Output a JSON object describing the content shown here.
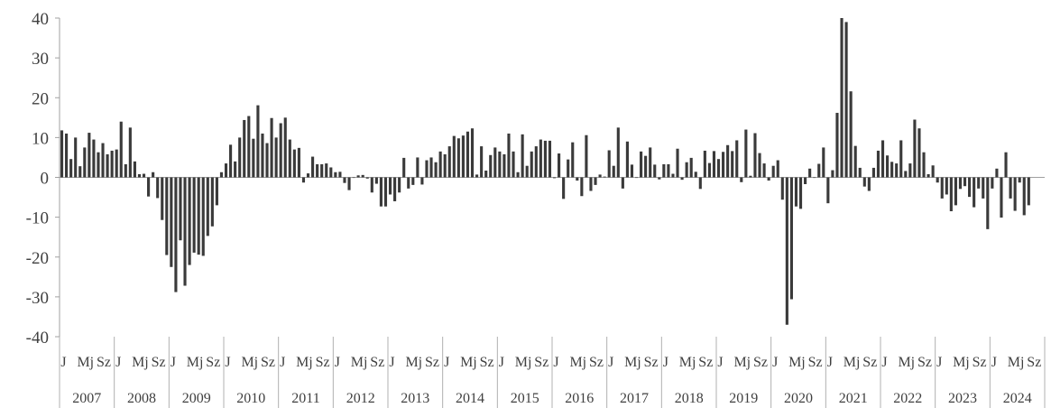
{
  "chart_data": {
    "type": "bar",
    "title": "",
    "xlabel": "",
    "ylabel": "",
    "ylim": [
      -40,
      40
    ],
    "yticks": [
      -40,
      -30,
      -20,
      -10,
      0,
      10,
      20,
      30,
      40
    ],
    "start_year": 2007,
    "month_labels": [
      "J",
      "Mj",
      "Sz"
    ],
    "years": [
      "2007",
      "2008",
      "2009",
      "2010",
      "2011",
      "2012",
      "2013",
      "2014",
      "2015",
      "2016",
      "2017",
      "2018",
      "2019",
      "2020",
      "2021",
      "2022",
      "2023",
      "2024"
    ],
    "months_per_year": [
      12,
      12,
      12,
      12,
      12,
      12,
      12,
      12,
      12,
      12,
      12,
      12,
      12,
      12,
      12,
      12,
      12,
      9
    ],
    "bar_color": "#3a3a3a",
    "values": [
      11.8,
      11.0,
      4.6,
      10.0,
      2.8,
      7.5,
      11.2,
      9.5,
      6.3,
      8.6,
      5.8,
      6.7,
      7.0,
      14.0,
      3.3,
      12.5,
      4.0,
      0.8,
      0.9,
      -4.8,
      1.3,
      -5.2,
      -10.7,
      -19.5,
      -22.5,
      -28.8,
      -15.8,
      -27.2,
      -22.0,
      -18.9,
      -19.4,
      -19.7,
      -14.7,
      -12.3,
      -7.0,
      1.3,
      3.5,
      8.2,
      4.0,
      10.0,
      14.4,
      15.4,
      9.7,
      18.1,
      11.0,
      8.6,
      14.9,
      10.0,
      13.6,
      15.0,
      9.5,
      7.0,
      7.4,
      -1.3,
      1.0,
      5.2,
      3.3,
      3.3,
      3.5,
      2.5,
      1.3,
      1.4,
      -1.4,
      -3.2,
      0.0,
      0.5,
      0.6,
      -0.3,
      -3.8,
      -1.6,
      -7.3,
      -7.3,
      -4.3,
      -6.0,
      -3.8,
      4.9,
      -2.8,
      -1.9,
      5.0,
      -1.8,
      4.3,
      5.0,
      3.8,
      6.5,
      5.8,
      7.8,
      10.4,
      9.8,
      10.5,
      11.5,
      12.3,
      0.7,
      7.8,
      1.7,
      5.6,
      7.5,
      6.5,
      5.8,
      11.0,
      6.5,
      1.3,
      10.8,
      2.9,
      6.5,
      7.8,
      9.5,
      9.2,
      9.2,
      -0.2,
      6.0,
      -5.4,
      4.5,
      8.8,
      -0.8,
      -4.7,
      10.6,
      -3.4,
      -1.9,
      0.7,
      0.2,
      6.8,
      2.9,
      12.5,
      -2.8,
      9.0,
      3.2,
      -0.1,
      6.5,
      5.4,
      7.5,
      3.2,
      -0.5,
      3.3,
      3.3,
      0.9,
      7.2,
      -0.6,
      3.8,
      4.9,
      1.4,
      -2.9,
      6.7,
      3.6,
      6.6,
      4.6,
      6.4,
      8.1,
      6.6,
      9.3,
      -1.2,
      12.0,
      0.4,
      11.1,
      6.1,
      3.5,
      -0.8,
      2.9,
      4.3,
      -5.6,
      -37.0,
      -30.6,
      -7.3,
      -7.9,
      -1.7,
      2.2,
      0.0,
      3.4,
      7.5,
      -6.5,
      1.8,
      16.2,
      40.0,
      39.0,
      21.6,
      7.9,
      2.4,
      -2.3,
      -3.4,
      2.4,
      6.7,
      9.3,
      5.5,
      3.9,
      3.5,
      9.3,
      1.6,
      3.5,
      14.5,
      12.3,
      6.3,
      0.8,
      3.0,
      -1.3,
      -5.3,
      -4.3,
      -8.5,
      -7.0,
      -2.9,
      -2.2,
      -4.9,
      -7.5,
      -2.8,
      -5.3,
      -13.0,
      -2.8,
      2.2,
      -10.1,
      6.3,
      -5.3,
      -8.4,
      -1.3,
      -9.5,
      -7.0
    ]
  }
}
